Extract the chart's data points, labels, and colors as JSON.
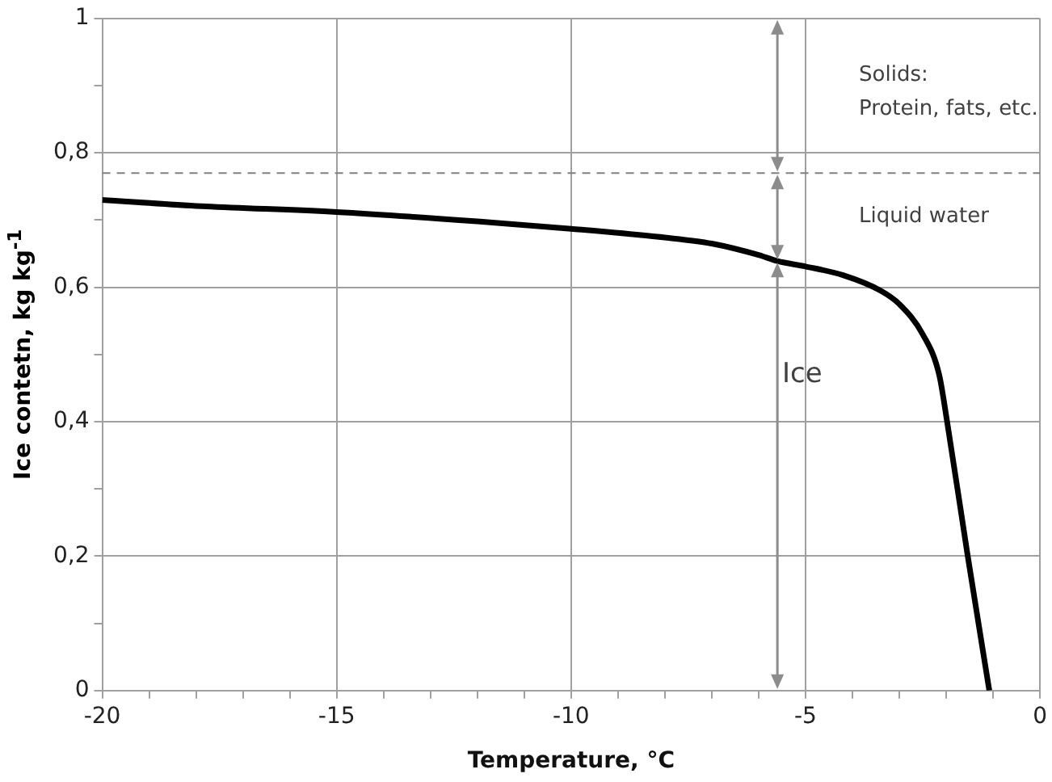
{
  "chart_data": {
    "type": "line",
    "xlabel": "Temperature, °C",
    "ylabel": "Ice contetn, kg kg$^{-1}$",
    "x": [
      -20,
      -18,
      -15,
      -12,
      -10,
      -8,
      -7,
      -6,
      -5.6,
      -5,
      -4.2,
      -3.4,
      -3,
      -2.5,
      -2.15,
      -1.98,
      -1.54,
      -1.08
    ],
    "series": [
      {
        "color": "#000000",
        "values": [
          0.73,
          0.721,
          0.712,
          0.698,
          0.687,
          0.674,
          0.665,
          0.648,
          0.639,
          0.631,
          0.618,
          0.595,
          0.575,
          0.53,
          0.47,
          0.4,
          0.2,
          0
        ]
      }
    ],
    "xlim": [
      -20,
      0
    ],
    "xticks": [
      -20,
      {
        "value": -19,
        "label": null
      },
      {
        "value": -18,
        "label": null
      },
      {
        "value": -17,
        "label": null
      },
      {
        "value": -16,
        "label": null
      },
      -15,
      {
        "value": -14,
        "label": null
      },
      {
        "value": -13,
        "label": null
      },
      {
        "value": -12,
        "label": null
      },
      {
        "value": -11,
        "label": null
      },
      -10,
      {
        "value": -9,
        "label": null
      },
      {
        "value": -8,
        "label": null
      },
      {
        "value": -7,
        "label": null
      },
      {
        "value": -6,
        "label": null
      },
      -5,
      {
        "value": -4,
        "label": null
      },
      {
        "value": -3,
        "label": null
      },
      {
        "value": -2,
        "label": null
      },
      {
        "value": -1,
        "label": null
      },
      0
    ],
    "ylim": [
      0,
      1
    ],
    "yticks": [
      0,
      {
        "value": 0.1,
        "label": null
      },
      {
        "value": 0.2,
        "label": "0,2"
      },
      {
        "value": 0.3,
        "label": null
      },
      {
        "value": 0.4,
        "label": "0,4"
      },
      {
        "value": 0.5,
        "label": null
      },
      {
        "value": 0.6,
        "label": "0,6"
      },
      {
        "value": 0.7,
        "label": null
      },
      {
        "value": 0.8,
        "label": "0,8"
      },
      {
        "value": 0.9,
        "label": null
      },
      1
    ],
    "grid": true,
    "marker": "none",
    "line_style": "solid",
    "ref_lines": [
      {
        "axis": "y",
        "value": 0.77,
        "color": "#808080",
        "line_style": "dashed"
      }
    ],
    "annotations": [
      "Ice",
      "Liquid water",
      "Solids:",
      "Protein, fats, etc."
    ]
  }
}
